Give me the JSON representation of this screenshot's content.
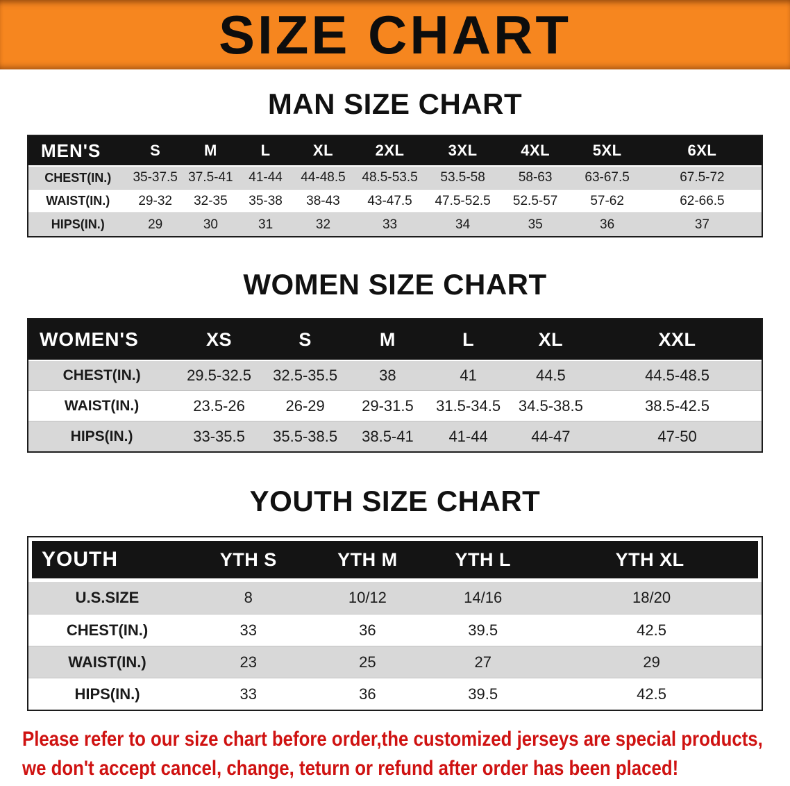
{
  "banner": {
    "title": "SIZE CHART",
    "bg_color": "#f6861f"
  },
  "sections": [
    {
      "heading": "MAN SIZE CHART",
      "table": {
        "header": [
          "MEN'S",
          "S",
          "M",
          "L",
          "XL",
          "2XL",
          "3XL",
          "4XL",
          "5XL",
          "6XL"
        ],
        "rows": [
          {
            "label": "CHEST(IN.)",
            "values": [
              "35-37.5",
              "37.5-41",
              "41-44",
              "44-48.5",
              "48.5-53.5",
              "53.5-58",
              "58-63",
              "63-67.5",
              "67.5-72"
            ]
          },
          {
            "label": "WAIST(IN.)",
            "values": [
              "29-32",
              "32-35",
              "35-38",
              "38-43",
              "43-47.5",
              "47.5-52.5",
              "52.5-57",
              "57-62",
              "62-66.5"
            ]
          },
          {
            "label": "HIPS(IN.)",
            "values": [
              "29",
              "30",
              "31",
              "32",
              "33",
              "34",
              "35",
              "36",
              "37"
            ]
          }
        ]
      }
    },
    {
      "heading": "WOMEN SIZE CHART",
      "table": {
        "header": [
          "WOMEN'S",
          "XS",
          "S",
          "M",
          "L",
          "XL",
          "XXL"
        ],
        "rows": [
          {
            "label": "CHEST(IN.)",
            "values": [
              "29.5-32.5",
              "32.5-35.5",
              "38",
              "41",
              "44.5",
              "44.5-48.5"
            ]
          },
          {
            "label": "WAIST(IN.)",
            "values": [
              "23.5-26",
              "26-29",
              "29-31.5",
              "31.5-34.5",
              "34.5-38.5",
              "38.5-42.5"
            ]
          },
          {
            "label": "HIPS(IN.)",
            "values": [
              "33-35.5",
              "35.5-38.5",
              "38.5-41",
              "41-44",
              "44-47",
              "47-50"
            ]
          }
        ]
      }
    },
    {
      "heading": "YOUTH SIZE CHART",
      "table": {
        "header": [
          "YOUTH",
          "YTH S",
          "YTH M",
          "YTH L",
          "YTH XL"
        ],
        "rows": [
          {
            "label": "U.S.SIZE",
            "values": [
              "8",
              "10/12",
              "14/16",
              "18/20"
            ]
          },
          {
            "label": "CHEST(IN.)",
            "values": [
              "33",
              "36",
              "39.5",
              "42.5"
            ]
          },
          {
            "label": "WAIST(IN.)",
            "values": [
              "23",
              "25",
              "27",
              "29"
            ]
          },
          {
            "label": "HIPS(IN.)",
            "values": [
              "33",
              "36",
              "39.5",
              "42.5"
            ]
          }
        ]
      }
    }
  ],
  "footer": {
    "line1": "Please refer to our size chart before order,the customized jerseys are special products,",
    "line2": "we don't accept cancel, change, teturn or refund after order has been placed!"
  }
}
